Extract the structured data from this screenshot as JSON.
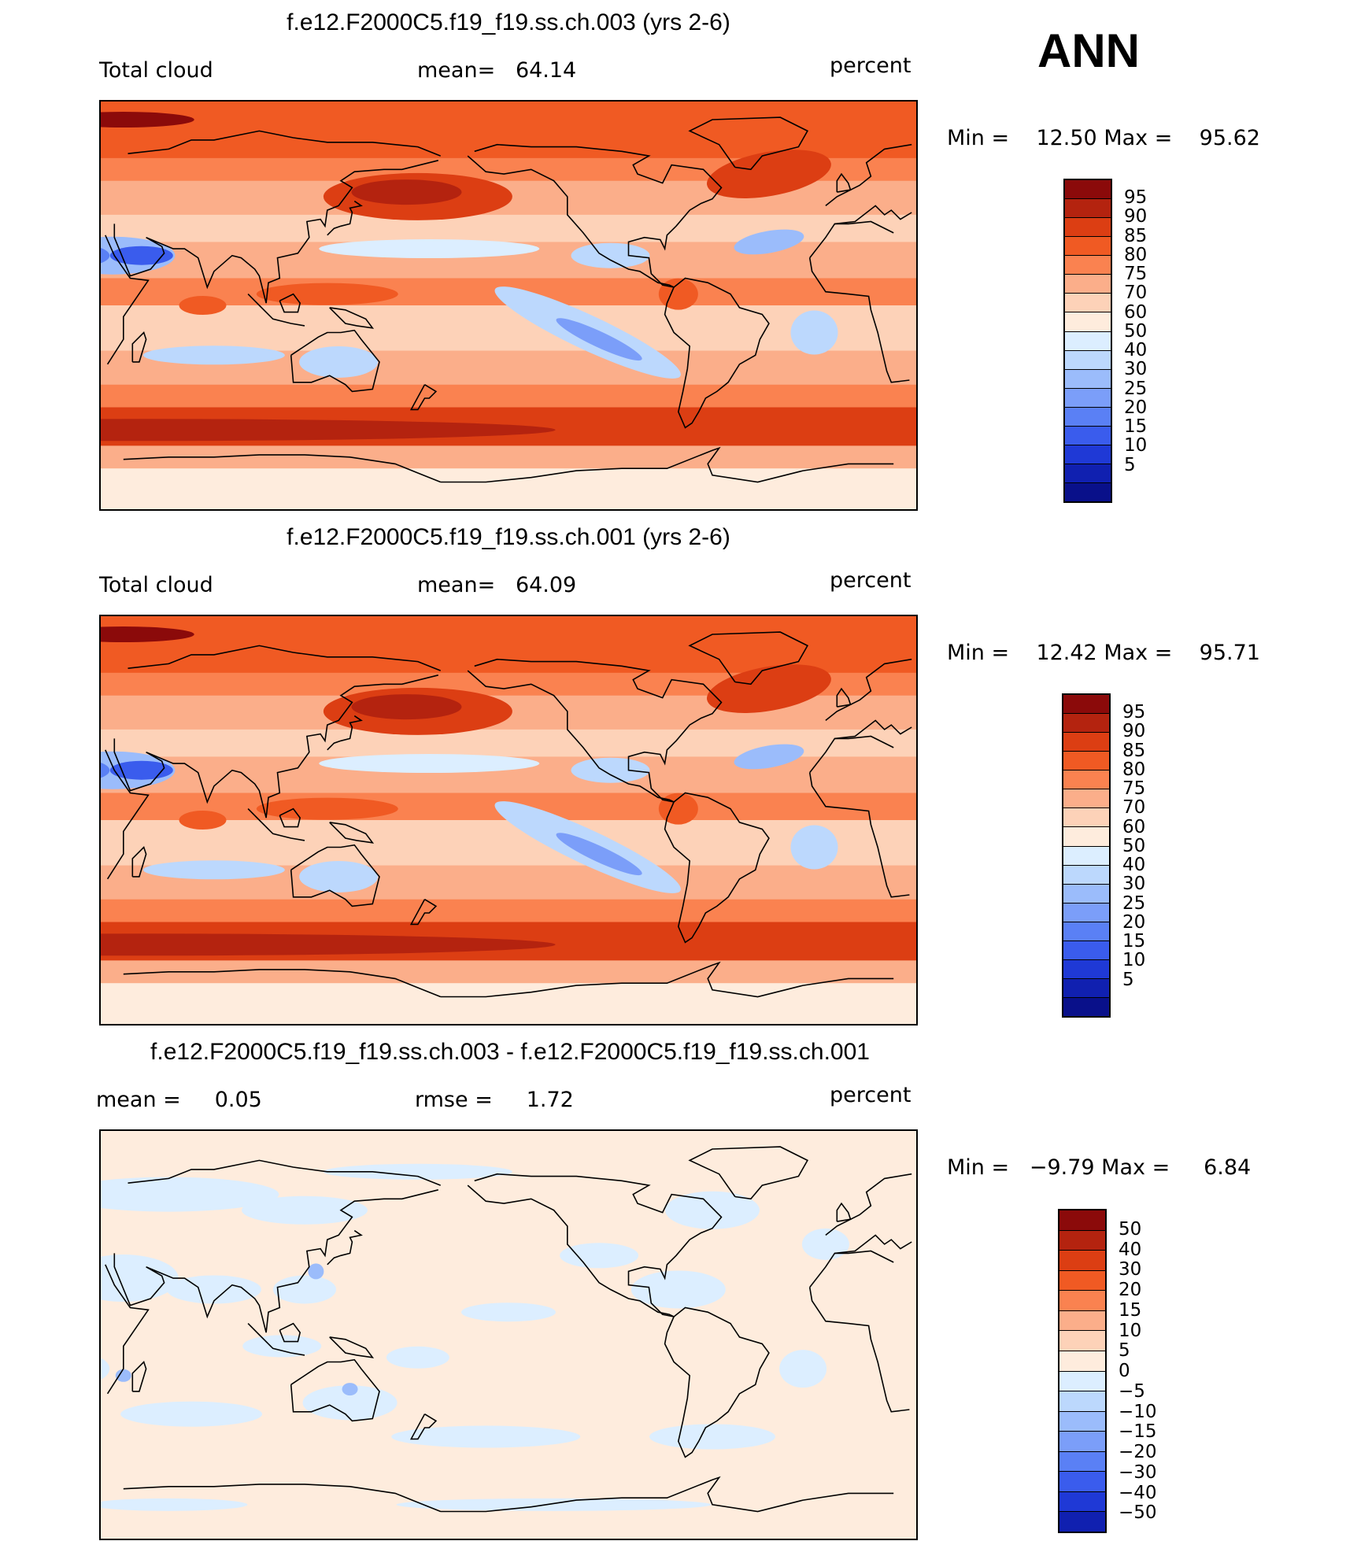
{
  "header": {
    "season": "ANN"
  },
  "panels": [
    {
      "title": "f.e12.F2000C5.f19_f19.ss.ch.003 (yrs 2-6)",
      "left_label": "Total cloud",
      "center_label": "mean=   64.14",
      "units": "percent",
      "minmax": "Min =    12.50 Max =    95.62",
      "kind": "abs"
    },
    {
      "title": "f.e12.F2000C5.f19_f19.ss.ch.001 (yrs 2-6)",
      "left_label": "Total cloud",
      "center_label": "mean=   64.09",
      "units": "percent",
      "minmax": "Min =    12.42 Max =    95.71",
      "kind": "abs"
    },
    {
      "title": "f.e12.F2000C5.f19_f19.ss.ch.003 - f.e12.F2000C5.f19_f19.ss.ch.001",
      "left_label": "mean =     0.05",
      "center_label": "rmse =     1.72",
      "units": "percent",
      "minmax": "Min =   −9.79 Max =     6.84",
      "kind": "diff"
    }
  ],
  "colorbars": {
    "abs_colors": [
      "#8b0a0a",
      "#b4230f",
      "#dc3e13",
      "#f05a23",
      "#fa8250",
      "#fbae8a",
      "#fdd2b8",
      "#feecdd",
      "#dceeff",
      "#bcd8fd",
      "#9bbcfb",
      "#7b9ef9",
      "#5a80f5",
      "#3a5ced",
      "#1f39d6",
      "#1020b0",
      "#09108a"
    ],
    "abs_ticks": [
      "95",
      "90",
      "85",
      "80",
      "75",
      "70",
      "60",
      "50",
      "40",
      "30",
      "25",
      "20",
      "15",
      "10",
      "5"
    ],
    "diff_colors": [
      "#8b0a0a",
      "#b4230f",
      "#dc3e13",
      "#f05a23",
      "#fa8250",
      "#fbae8a",
      "#fdd2b8",
      "#feecdd",
      "#dceeff",
      "#bcd8fd",
      "#9bbcfb",
      "#7b9ef9",
      "#5a80f5",
      "#3a5ced",
      "#1f39d6",
      "#1020b0"
    ],
    "diff_ticks": [
      "50",
      "40",
      "30",
      "20",
      "15",
      "10",
      "5",
      "0",
      "−5",
      "−10",
      "−15",
      "−20",
      "−30",
      "−40",
      "−50"
    ]
  },
  "chart_data": [
    {
      "type": "heatmap",
      "title": "f.e12.F2000C5.f19_f19.ss.ch.003 (yrs 2-6)",
      "variable": "Total cloud",
      "units": "percent",
      "mean": 64.14,
      "min": 12.5,
      "max": 95.62,
      "contour_levels": [
        5,
        10,
        15,
        20,
        25,
        30,
        40,
        50,
        60,
        70,
        75,
        80,
        85,
        90,
        95
      ]
    },
    {
      "type": "heatmap",
      "title": "f.e12.F2000C5.f19_f19.ss.ch.001 (yrs 2-6)",
      "variable": "Total cloud",
      "units": "percent",
      "mean": 64.09,
      "min": 12.42,
      "max": 95.71,
      "contour_levels": [
        5,
        10,
        15,
        20,
        25,
        30,
        40,
        50,
        60,
        70,
        75,
        80,
        85,
        90,
        95
      ]
    },
    {
      "type": "heatmap",
      "title": "f.e12.F2000C5.f19_f19.ss.ch.003 - f.e12.F2000C5.f19_f19.ss.ch.001",
      "units": "percent",
      "mean": 0.05,
      "rmse": 1.72,
      "min": -9.79,
      "max": 6.84,
      "contour_levels": [
        -50,
        -40,
        -30,
        -20,
        -15,
        -10,
        -5,
        0,
        5,
        10,
        15,
        20,
        30,
        40,
        50
      ]
    }
  ]
}
